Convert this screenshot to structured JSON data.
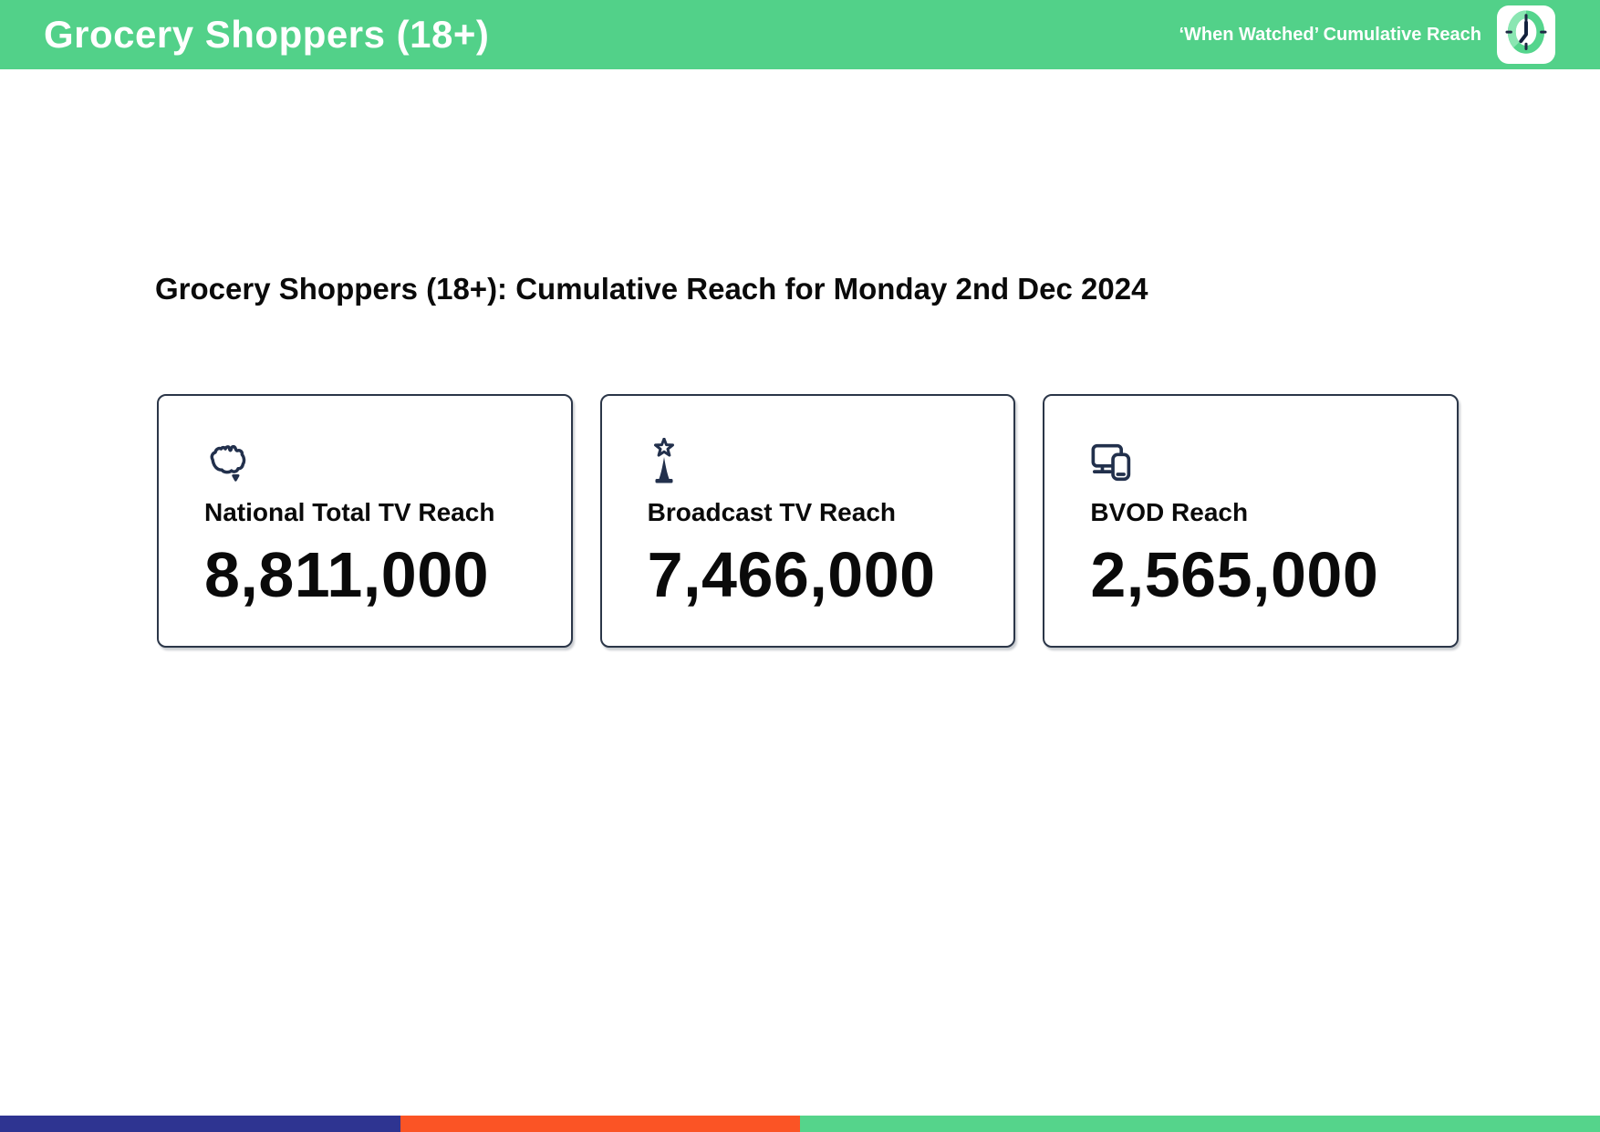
{
  "header": {
    "title": "Grocery Shoppers (18+)",
    "subtitle": "‘When Watched’ Cumulative Reach"
  },
  "main": {
    "heading": "Grocery Shoppers (18+): Cumulative Reach for Monday 2nd Dec 2024",
    "cards": [
      {
        "icon": "australia-map-icon",
        "label": "National Total TV Reach",
        "value": "8,811,000"
      },
      {
        "icon": "broadcast-tower-icon",
        "label": "Broadcast TV Reach",
        "value": "7,466,000"
      },
      {
        "icon": "devices-icon",
        "label": "BVOD Reach",
        "value": "2,565,000"
      }
    ]
  },
  "footer": {
    "segments": [
      {
        "name": "blue-segment",
        "color": "#2e3491",
        "width_percent": 25
      },
      {
        "name": "orange-segment",
        "color": "#fb5425",
        "width_percent": 25
      },
      {
        "name": "green-segment",
        "color": "#55d48b",
        "width_percent": 50
      }
    ]
  },
  "theme": {
    "header_green": "#52d189",
    "icon_navy": "#22304c",
    "card_border": "#2b3648",
    "text_black": "#0a0a0a"
  }
}
